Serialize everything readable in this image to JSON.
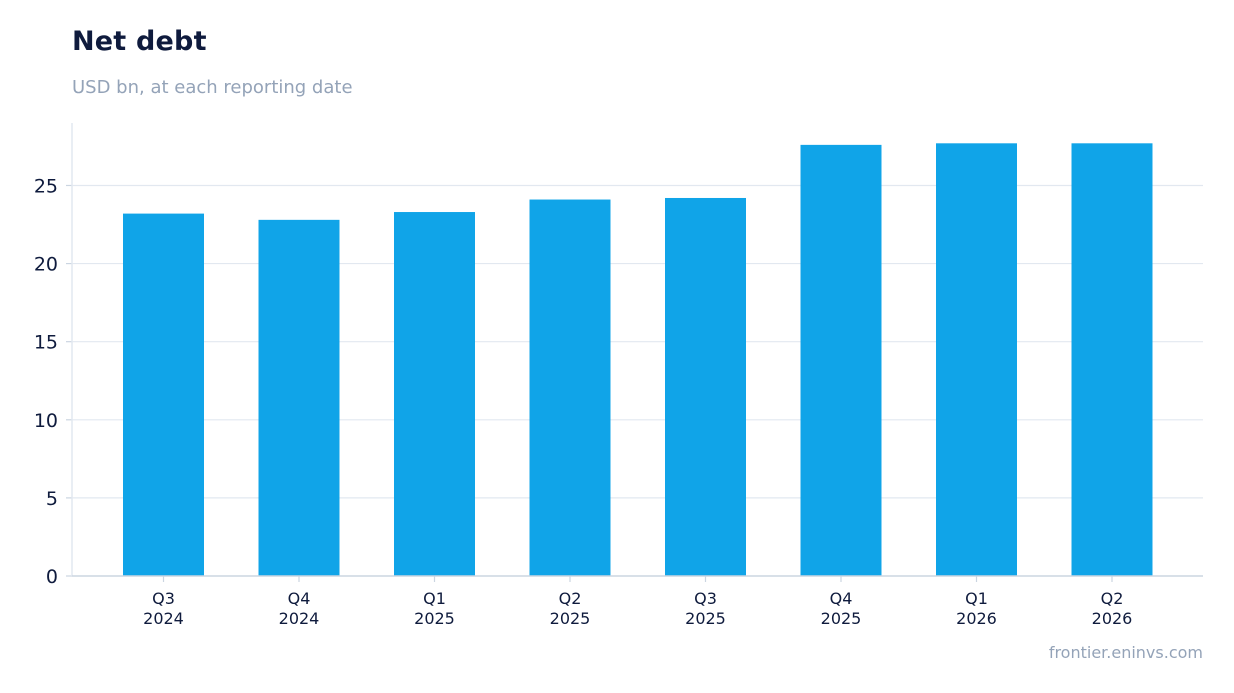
{
  "title": "Net debt",
  "subtitle": "USD bn, at each reporting date",
  "source": "frontier.eninvs.com",
  "colors": {
    "bar": "#10a4e8",
    "grid": "#e2e8f0",
    "axis": "#cbd5e1",
    "text": "#0f1b3d",
    "muted": "#94a3b8"
  },
  "chart_data": {
    "type": "bar",
    "title": "Net debt",
    "subtitle": "USD bn, at each reporting date",
    "xlabel": "",
    "ylabel": "",
    "ylim": [
      0,
      29
    ],
    "yticks": [
      0,
      5,
      10,
      15,
      20,
      25
    ],
    "grid": true,
    "categories": [
      [
        "Q3",
        "2024"
      ],
      [
        "Q4",
        "2024"
      ],
      [
        "Q1",
        "2025"
      ],
      [
        "Q2",
        "2025"
      ],
      [
        "Q3",
        "2025"
      ],
      [
        "Q4",
        "2025"
      ],
      [
        "Q1",
        "2026"
      ],
      [
        "Q2",
        "2026"
      ]
    ],
    "values": [
      23.2,
      22.8,
      23.3,
      24.1,
      24.2,
      27.6,
      27.7,
      27.7
    ]
  }
}
